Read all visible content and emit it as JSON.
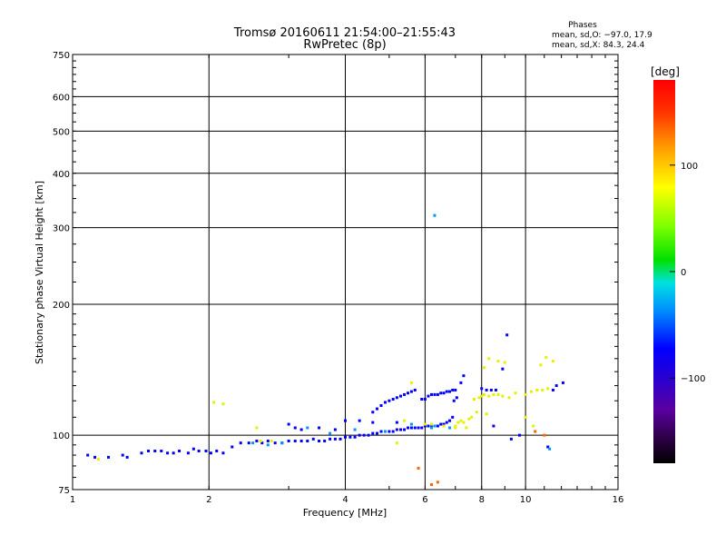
{
  "chart_data": {
    "type": "scatter",
    "title": "Tromsø 20160611 21:54:00–21:55:43",
    "subtitle": "RwPretec (8p)",
    "xlabel": "Frequency [MHz]",
    "ylabel": "Stationary phase Virtual Height [km]",
    "x_scale": "log2",
    "y_scale": "log",
    "xlim": [
      1,
      16
    ],
    "ylim": [
      75,
      750
    ],
    "x_ticks": [
      1,
      2,
      4,
      6,
      8,
      10,
      16
    ],
    "x_tick_labels": [
      "1",
      "2",
      "4",
      "6",
      "8",
      "10",
      "16"
    ],
    "y_ticks": [
      75,
      100,
      200,
      300,
      400,
      500,
      600,
      750
    ],
    "y_tick_labels": [
      "75",
      "100",
      "200",
      "300",
      "400",
      "500",
      "600",
      "750"
    ],
    "phase_summary": {
      "heading": "Phases",
      "line_o": "mean, sd,O: −97.0, 17.9",
      "line_x": "mean, sd,X:  84.3, 24.4"
    },
    "colorbar": {
      "unit": "[deg]",
      "range": [
        -180,
        180
      ],
      "ticks": [
        100,
        0,
        -100
      ],
      "tick_labels": [
        "100",
        "0",
        "−100"
      ]
    },
    "series": [
      {
        "mode": "O",
        "phase_deg": -100,
        "points": [
          [
            1.08,
            90
          ],
          [
            1.12,
            89
          ],
          [
            1.2,
            89
          ],
          [
            1.29,
            90
          ],
          [
            1.32,
            89
          ],
          [
            1.42,
            91
          ],
          [
            1.47,
            92
          ],
          [
            1.52,
            92
          ],
          [
            1.57,
            92
          ],
          [
            1.62,
            91
          ],
          [
            1.67,
            91
          ],
          [
            1.72,
            92
          ],
          [
            1.8,
            91
          ],
          [
            1.85,
            93
          ],
          [
            1.9,
            92
          ],
          [
            1.97,
            92
          ],
          [
            2.02,
            91
          ],
          [
            2.08,
            92
          ],
          [
            2.15,
            91
          ],
          [
            2.25,
            94
          ],
          [
            2.35,
            96
          ],
          [
            2.45,
            96
          ],
          [
            2.55,
            97
          ],
          [
            2.62,
            96
          ],
          [
            2.7,
            97
          ],
          [
            2.8,
            96
          ],
          [
            2.9,
            96
          ],
          [
            3.0,
            97
          ],
          [
            3.1,
            97
          ],
          [
            3.2,
            97
          ],
          [
            3.3,
            97
          ],
          [
            3.4,
            98
          ],
          [
            3.5,
            97
          ],
          [
            3.6,
            97
          ],
          [
            3.7,
            98
          ],
          [
            3.8,
            98
          ],
          [
            3.9,
            98
          ],
          [
            4.0,
            99
          ],
          [
            4.1,
            99
          ],
          [
            4.2,
            99
          ],
          [
            4.3,
            100
          ],
          [
            4.4,
            100
          ],
          [
            4.5,
            100
          ],
          [
            4.6,
            101
          ],
          [
            4.7,
            101
          ],
          [
            4.8,
            102
          ],
          [
            4.9,
            102
          ],
          [
            5.0,
            102
          ],
          [
            5.1,
            102
          ],
          [
            5.2,
            103
          ],
          [
            5.3,
            103
          ],
          [
            5.4,
            103
          ],
          [
            5.5,
            104
          ],
          [
            5.6,
            104
          ],
          [
            5.7,
            104
          ],
          [
            5.8,
            104
          ],
          [
            5.9,
            104
          ],
          [
            6.0,
            105
          ],
          [
            6.1,
            105
          ],
          [
            6.2,
            105
          ],
          [
            6.3,
            105
          ],
          [
            6.4,
            105
          ],
          [
            6.5,
            106
          ],
          [
            6.6,
            106
          ],
          [
            6.7,
            107
          ],
          [
            6.8,
            108
          ],
          [
            6.9,
            110
          ],
          [
            4.6,
            113
          ],
          [
            4.7,
            115
          ],
          [
            4.8,
            117
          ],
          [
            4.9,
            119
          ],
          [
            5.0,
            120
          ],
          [
            5.1,
            121
          ],
          [
            5.2,
            122
          ],
          [
            5.3,
            123
          ],
          [
            5.4,
            124
          ],
          [
            5.5,
            125
          ],
          [
            5.6,
            126
          ],
          [
            5.7,
            127
          ],
          [
            5.9,
            121
          ],
          [
            6.0,
            121
          ],
          [
            6.1,
            123
          ],
          [
            6.2,
            124
          ],
          [
            6.3,
            124
          ],
          [
            6.4,
            124
          ],
          [
            6.5,
            125
          ],
          [
            6.6,
            125
          ],
          [
            6.7,
            126
          ],
          [
            6.8,
            126
          ],
          [
            6.9,
            127
          ],
          [
            7.0,
            127
          ],
          [
            7.2,
            132
          ],
          [
            7.3,
            137
          ],
          [
            6.95,
            120
          ],
          [
            7.05,
            122
          ],
          [
            3.0,
            106
          ],
          [
            3.1,
            104
          ],
          [
            3.2,
            103
          ],
          [
            3.5,
            104
          ],
          [
            3.8,
            103
          ],
          [
            4.0,
            108
          ],
          [
            4.3,
            108
          ],
          [
            4.6,
            107
          ],
          [
            5.2,
            107
          ],
          [
            8.0,
            128
          ],
          [
            8.2,
            127
          ],
          [
            8.4,
            127
          ],
          [
            8.6,
            127
          ],
          [
            8.9,
            142
          ],
          [
            9.1,
            170
          ],
          [
            8.5,
            105
          ],
          [
            9.3,
            98
          ],
          [
            9.7,
            100
          ],
          [
            11.5,
            127
          ],
          [
            11.7,
            130
          ],
          [
            12.1,
            132
          ],
          [
            11.2,
            94
          ]
        ]
      },
      {
        "mode": "O",
        "phase_deg": -60,
        "points": [
          [
            2.5,
            96
          ],
          [
            2.7,
            95
          ],
          [
            2.9,
            96
          ],
          [
            3.3,
            104
          ],
          [
            3.7,
            101
          ],
          [
            4.2,
            103
          ],
          [
            4.9,
            102
          ],
          [
            5.6,
            106
          ],
          [
            6.2,
            104
          ],
          [
            6.8,
            104
          ],
          [
            6.3,
            320
          ],
          [
            6.3,
            105
          ],
          [
            11.3,
            93
          ]
        ]
      },
      {
        "mode": "X",
        "phase_deg": 95,
        "points": [
          [
            1.14,
            88
          ],
          [
            2.05,
            119
          ],
          [
            2.15,
            118
          ],
          [
            2.55,
            104
          ],
          [
            2.6,
            97
          ],
          [
            2.75,
            97
          ],
          [
            5.2,
            96
          ],
          [
            5.4,
            108
          ],
          [
            5.6,
            132
          ],
          [
            7.0,
            105
          ],
          [
            7.1,
            107
          ],
          [
            7.2,
            108
          ],
          [
            7.3,
            107
          ],
          [
            7.5,
            109
          ],
          [
            7.6,
            110
          ],
          [
            7.4,
            104
          ],
          [
            7.7,
            121
          ],
          [
            7.9,
            122
          ],
          [
            8.0,
            123
          ],
          [
            8.1,
            124
          ],
          [
            8.3,
            123
          ],
          [
            8.5,
            124
          ],
          [
            8.7,
            124
          ],
          [
            8.9,
            123
          ],
          [
            9.2,
            122
          ],
          [
            9.5,
            125
          ],
          [
            10.0,
            124
          ],
          [
            10.3,
            126
          ],
          [
            10.6,
            127
          ],
          [
            10.9,
            127
          ],
          [
            11.2,
            128
          ],
          [
            8.1,
            143
          ],
          [
            8.3,
            150
          ],
          [
            8.7,
            148
          ],
          [
            9.0,
            147
          ],
          [
            10.8,
            145
          ],
          [
            11.1,
            151
          ],
          [
            11.5,
            148
          ],
          [
            7.8,
            113
          ],
          [
            8.2,
            112
          ],
          [
            10.0,
            110
          ],
          [
            10.4,
            105
          ],
          [
            6.0,
            106
          ],
          [
            6.2,
            106
          ],
          [
            6.6,
            105
          ],
          [
            7.0,
            104
          ]
        ]
      },
      {
        "mode": "X",
        "phase_deg": 150,
        "points": [
          [
            6.2,
            77
          ],
          [
            6.4,
            78
          ],
          [
            5.8,
            84
          ],
          [
            11.0,
            100
          ],
          [
            10.5,
            102
          ]
        ]
      }
    ],
    "grid": true
  }
}
